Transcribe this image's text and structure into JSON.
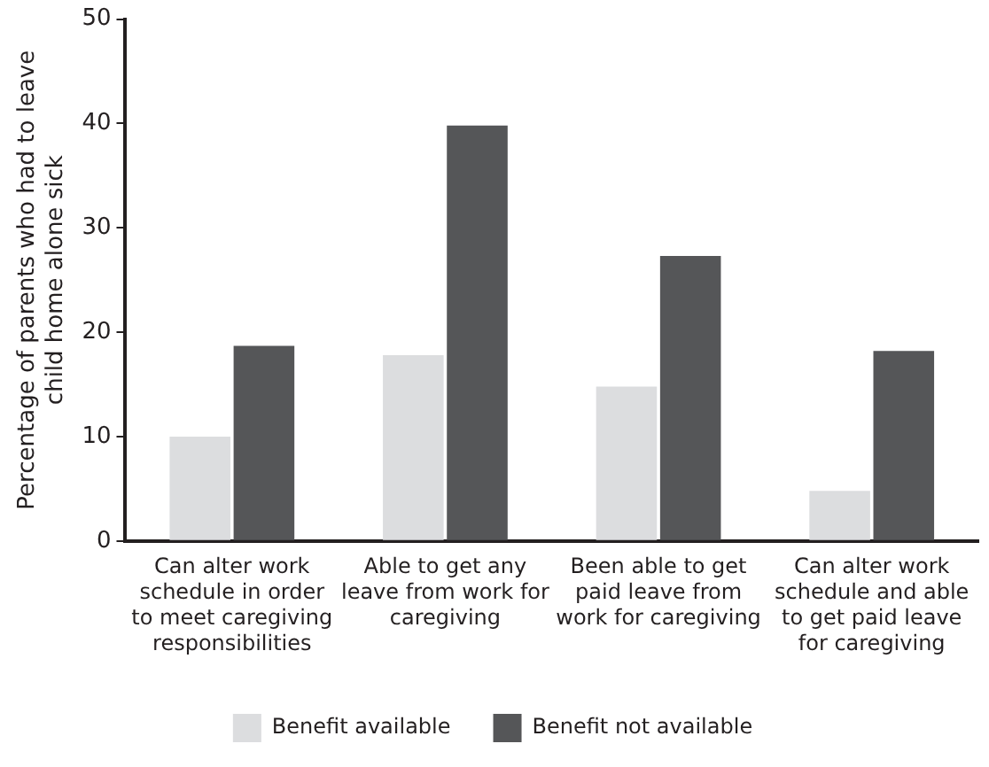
{
  "chart_data": {
    "type": "bar",
    "ylabel": "Percentage of parents who had to leave child home alone sick",
    "categories": [
      "Can alter work schedule in order to meet caregiving responsibilities",
      "Able to get any leave from work for caregiving",
      "Been able to get paid leave from work for caregiving",
      "Can alter work schedule and able to get paid leave for caregiving"
    ],
    "series": [
      {
        "name": "Benefit available",
        "color": "#dcdddf",
        "values": [
          10,
          17.8,
          14.8,
          4.8
        ]
      },
      {
        "name": "Benefit not available",
        "color": "#555658",
        "values": [
          18.7,
          39.8,
          27.3,
          18.2
        ]
      }
    ],
    "ylim": [
      0,
      50
    ],
    "yticks": [
      0,
      10,
      20,
      30,
      40,
      50
    ],
    "grid": false,
    "legend": "bottom"
  }
}
